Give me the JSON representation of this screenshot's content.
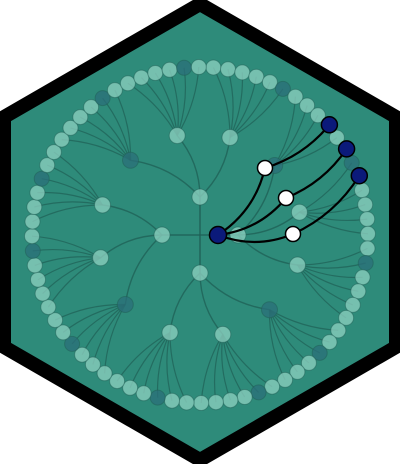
{
  "colors": {
    "hex_fill": "#2e8b7a",
    "hex_border": "#000000",
    "node_faded": "#8fd1c2",
    "node_faded_dark": "#2b6f7a",
    "node_dark_highlight": "#0b1a7a",
    "node_white": "#ffffff",
    "edge_faded": "#1f5f55",
    "edge_highlight": "#000000"
  },
  "tree": {
    "leaf_count": 72,
    "dark_leaf_indices": [
      5,
      12,
      19,
      26,
      31,
      38,
      45,
      52,
      57,
      64,
      70
    ],
    "highlight_leaf_indices": [
      9,
      11,
      13
    ]
  }
}
